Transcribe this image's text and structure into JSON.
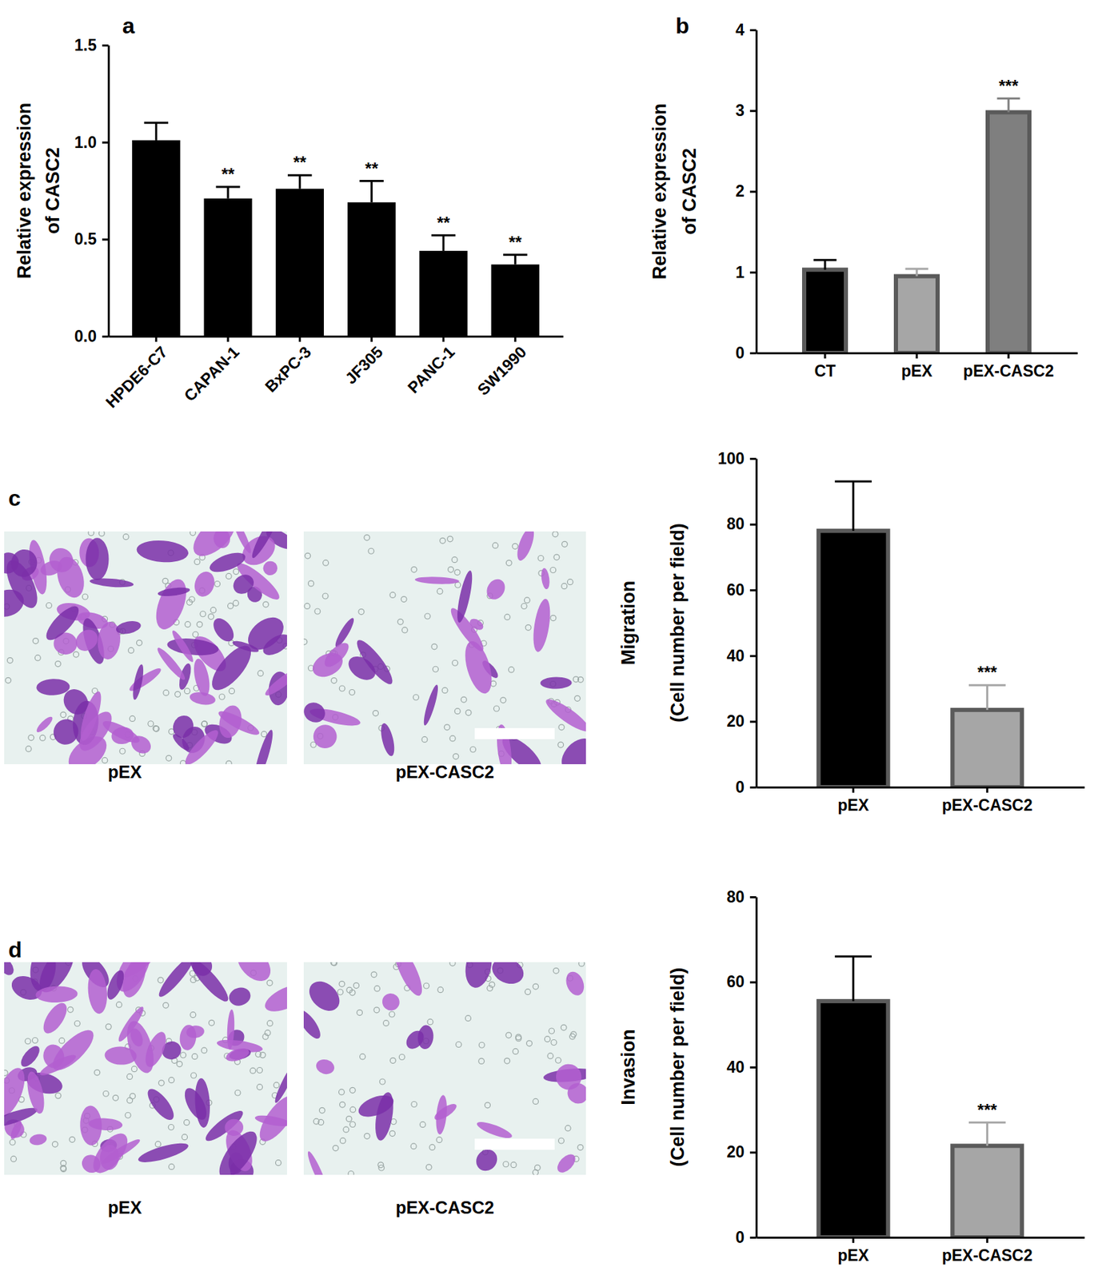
{
  "chart_data": [
    {
      "type": "bar",
      "panel": "a",
      "ylabel": [
        "Relative expression",
        "of CASC2"
      ],
      "categories": [
        "HPDE6-C7",
        "CAPAN-1",
        "BxPC-3",
        "JF305",
        "PANC-1",
        "SW1990"
      ],
      "values": [
        1.01,
        0.71,
        0.76,
        0.69,
        0.44,
        0.37
      ],
      "errors": [
        0.09,
        0.06,
        0.07,
        0.11,
        0.08,
        0.05
      ],
      "annotations": [
        null,
        "**",
        "**",
        "**",
        "**",
        "**"
      ],
      "color": "#000000",
      "ylim": [
        0,
        1.5
      ],
      "yticks": [
        {
          "value": 0,
          "label": "0.0"
        },
        0.5,
        {
          "value": 1,
          "label": "1.0"
        },
        1.5
      ]
    },
    {
      "type": "bar",
      "panel": "b",
      "ylabel": [
        "Relative expression",
        "of CASC2"
      ],
      "categories": [
        "CT",
        "pEX",
        "pEX-CASC2"
      ],
      "values": [
        1.03,
        0.95,
        2.98
      ],
      "errors": [
        0.12,
        0.09,
        0.17
      ],
      "annotations": [
        null,
        null,
        "***"
      ],
      "colors": [
        "#000000",
        "#a6a6a6",
        "#7f7f7f"
      ],
      "ylim": [
        0,
        4
      ],
      "yticks": [
        0,
        1,
        2,
        3,
        4
      ]
    },
    {
      "type": "bar",
      "ylabel": [
        "Migration",
        "(Cell number per field)"
      ],
      "categories": [
        "pEX",
        "pEX-CASC2"
      ],
      "values": [
        78,
        23.5
      ],
      "errors": [
        15,
        7.5
      ],
      "annotations": [
        null,
        "***"
      ],
      "colors": [
        "#000000",
        "#a6a6a6"
      ],
      "ylim": [
        0,
        100
      ],
      "yticks": [
        0,
        20,
        40,
        60,
        80,
        100
      ]
    },
    {
      "type": "bar",
      "ylabel": [
        "Invasion",
        "(Cell number per field)"
      ],
      "categories": [
        "pEX",
        "pEX-CASC2"
      ],
      "values": [
        55.5,
        21.5
      ],
      "errors": [
        10.5,
        5.5
      ],
      "annotations": [
        null,
        "***"
      ],
      "colors": [
        "#000000",
        "#a6a6a6"
      ],
      "ylim": [
        0,
        80
      ],
      "yticks": [
        0,
        20,
        40,
        60,
        80
      ]
    }
  ],
  "images": [
    {
      "panel": "c",
      "captions": [
        "pEX",
        "pEX-CASC2"
      ]
    },
    {
      "panel": "d",
      "captions": [
        "pEX",
        "pEX-CASC2"
      ]
    }
  ]
}
